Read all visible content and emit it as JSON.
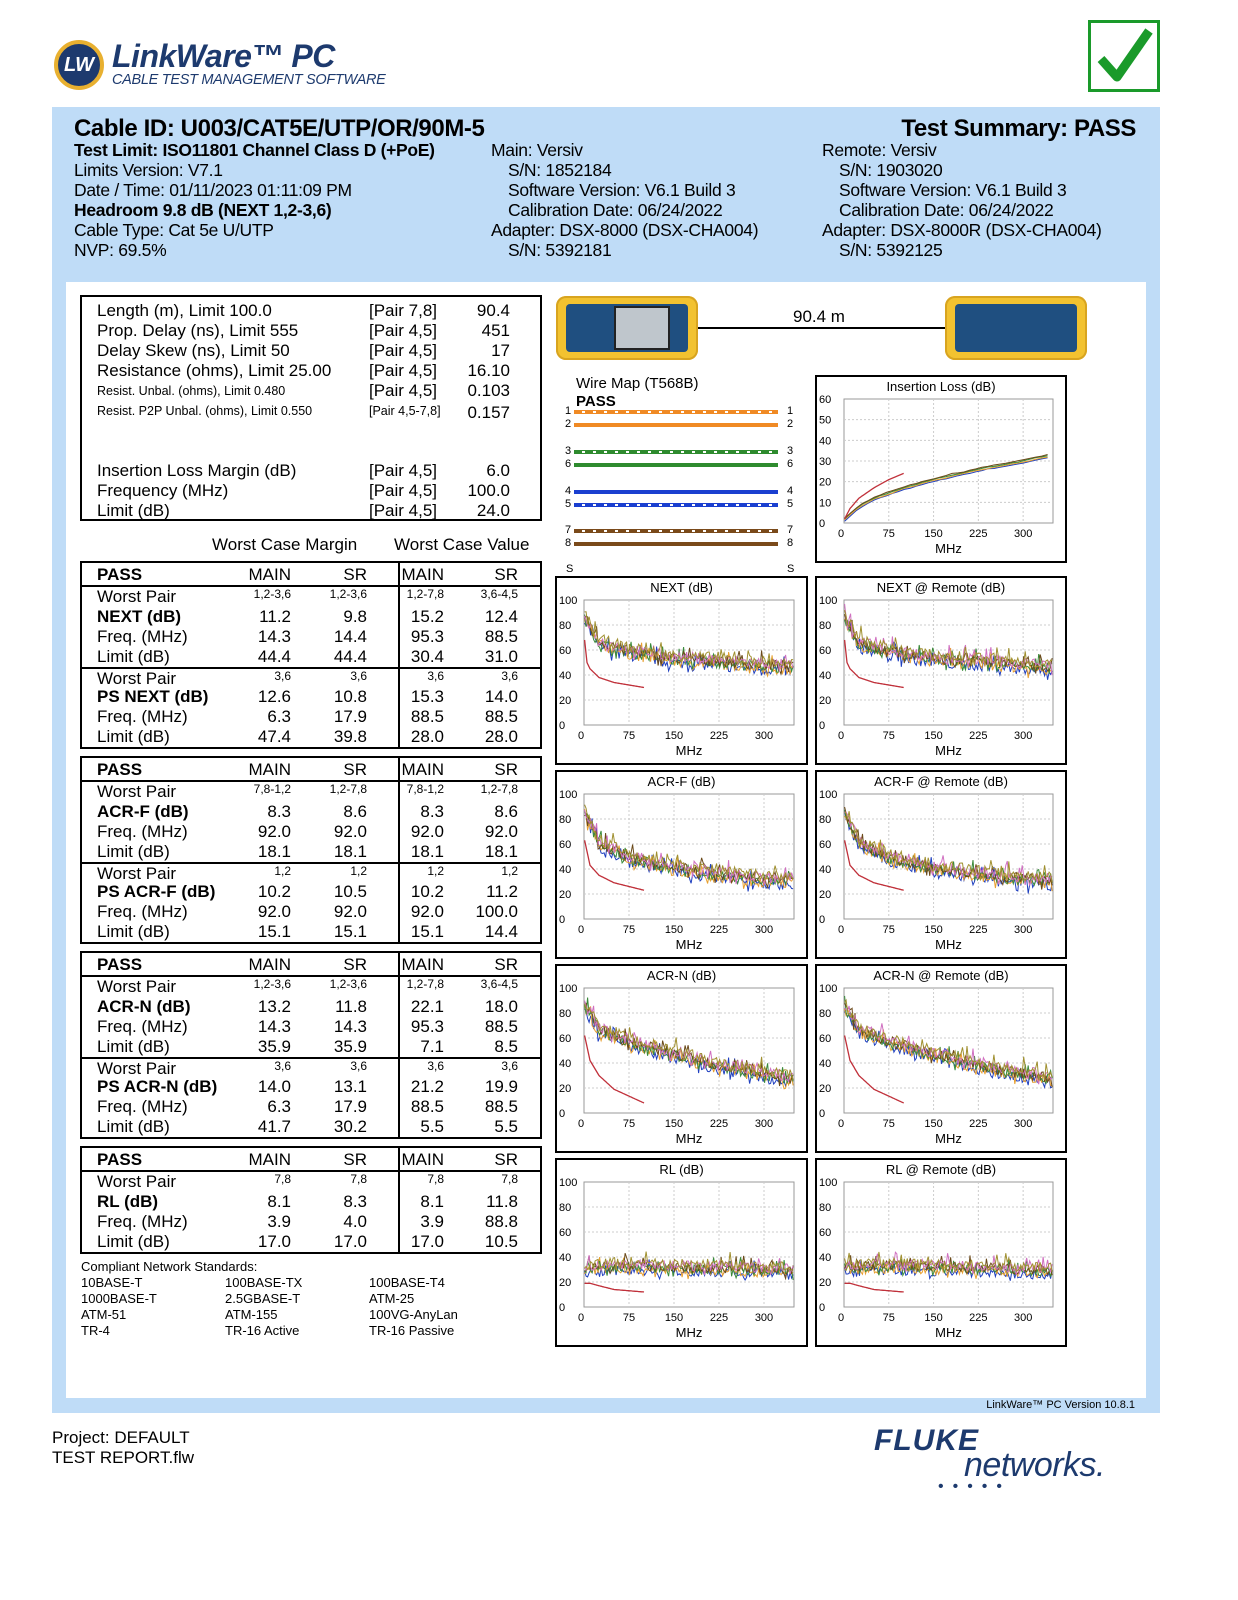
{
  "logo": {
    "mark": "LW",
    "name": "LinkWare™ PC",
    "tagline": "CABLE TEST MANAGEMENT SOFTWARE"
  },
  "status_icon": "checkmark-icon",
  "colors": {
    "band": "#bfdcf7",
    "pass": "#1a9a2a",
    "limit": "#c0303a",
    "device": "#f2c230"
  },
  "header": {
    "cable_id": "Cable ID: U003/CAT5E/UTP/OR/90M-5",
    "test_summary": "Test Summary: PASS",
    "left": [
      "Test Limit: ISO11801 Channel Class D (+PoE)",
      "Limits Version: V7.1",
      "Date / Time: 01/11/2023  01:11:09 PM",
      "Headroom 9.8 dB (NEXT 1,2-3,6)",
      "Cable Type: Cat 5e U/UTP",
      "NVP: 69.5%"
    ],
    "main": [
      "Main: Versiv",
      "S/N: 1852184",
      "Software Version: V6.1 Build 3",
      "Calibration Date: 06/24/2022",
      "Adapter: DSX-8000 (DSX-CHA004)",
      "S/N: 5392181"
    ],
    "remote": [
      "Remote: Versiv",
      "S/N: 1903020",
      "Software Version: V6.1 Build 3",
      "Calibration Date: 06/24/2022",
      "Adapter: DSX-8000R (DSX-CHA004)",
      "S/N: 5392125"
    ]
  },
  "summary": {
    "rows": [
      {
        "label": "Length (m), Limit 100.0",
        "pair": "[Pair 7,8]",
        "value": "90.4"
      },
      {
        "label": "Prop. Delay (ns), Limit 555",
        "pair": "[Pair 4,5]",
        "value": "451"
      },
      {
        "label": "Delay Skew (ns), Limit 50",
        "pair": "[Pair 4,5]",
        "value": "17"
      },
      {
        "label": "Resistance (ohms), Limit 25.00",
        "pair": "[Pair 4,5]",
        "value": "16.10"
      },
      {
        "label": "Resist. Unbal. (ohms), Limit 0.480",
        "pair": "[Pair 4,5]",
        "value": "0.103",
        "small": true
      },
      {
        "label": "Resist. P2P Unbal. (ohms), Limit 0.550",
        "pair": "[Pair 4,5-7,8]",
        "value": "0.157",
        "small": true,
        "smallpair": true
      }
    ],
    "il_rows": [
      {
        "label": "Insertion Loss Margin (dB)",
        "pair": "[Pair 4,5]",
        "value": "6.0"
      },
      {
        "label": "Frequency (MHz)",
        "pair": "[Pair 4,5]",
        "value": "100.0"
      },
      {
        "label": "Limit (dB)",
        "pair": "[Pair 4,5]",
        "value": "24.0"
      }
    ]
  },
  "worst_case": {
    "margin_heading": "Worst Case Margin",
    "value_heading": "Worst Case Value",
    "blocks": [
      {
        "status": "PASS",
        "cols": [
          "MAIN",
          "SR",
          "MAIN",
          "SR"
        ],
        "groups": [
          {
            "rows": [
              [
                "Worst Pair",
                "1,2-3,6",
                "1,2-3,6",
                "1,2-7,8",
                "3,6-4,5"
              ],
              [
                "NEXT (dB)",
                "11.2",
                "9.8",
                "15.2",
                "12.4"
              ],
              [
                "Freq. (MHz)",
                "14.3",
                "14.4",
                "95.3",
                "88.5"
              ],
              [
                "Limit (dB)",
                "44.4",
                "44.4",
                "30.4",
                "31.0"
              ]
            ]
          },
          {
            "rows": [
              [
                "Worst Pair",
                "3,6",
                "3,6",
                "3,6",
                "3,6"
              ],
              [
                "PS NEXT (dB)",
                "12.6",
                "10.8",
                "15.3",
                "14.0"
              ],
              [
                "Freq. (MHz)",
                "6.3",
                "17.9",
                "88.5",
                "88.5"
              ],
              [
                "Limit (dB)",
                "47.4",
                "39.8",
                "28.0",
                "28.0"
              ]
            ]
          }
        ]
      },
      {
        "status": "PASS",
        "cols": [
          "MAIN",
          "SR",
          "MAIN",
          "SR"
        ],
        "groups": [
          {
            "rows": [
              [
                "Worst Pair",
                "7,8-1,2",
                "1,2-7,8",
                "7,8-1,2",
                "1,2-7,8"
              ],
              [
                "ACR-F (dB)",
                "8.3",
                "8.6",
                "8.3",
                "8.6"
              ],
              [
                "Freq. (MHz)",
                "92.0",
                "92.0",
                "92.0",
                "92.0"
              ],
              [
                "Limit (dB)",
                "18.1",
                "18.1",
                "18.1",
                "18.1"
              ]
            ]
          },
          {
            "rows": [
              [
                "Worst Pair",
                "1,2",
                "1,2",
                "1,2",
                "1,2"
              ],
              [
                "PS ACR-F (dB)",
                "10.2",
                "10.5",
                "10.2",
                "11.2"
              ],
              [
                "Freq. (MHz)",
                "92.0",
                "92.0",
                "92.0",
                "100.0"
              ],
              [
                "Limit (dB)",
                "15.1",
                "15.1",
                "15.1",
                "14.4"
              ]
            ]
          }
        ]
      },
      {
        "status": "PASS",
        "cols": [
          "MAIN",
          "SR",
          "MAIN",
          "SR"
        ],
        "groups": [
          {
            "rows": [
              [
                "Worst Pair",
                "1,2-3,6",
                "1,2-3,6",
                "1,2-7,8",
                "3,6-4,5"
              ],
              [
                "ACR-N (dB)",
                "13.2",
                "11.8",
                "22.1",
                "18.0"
              ],
              [
                "Freq. (MHz)",
                "14.3",
                "14.3",
                "95.3",
                "88.5"
              ],
              [
                "Limit (dB)",
                "35.9",
                "35.9",
                "7.1",
                "8.5"
              ]
            ]
          },
          {
            "rows": [
              [
                "Worst Pair",
                "3,6",
                "3,6",
                "3,6",
                "3,6"
              ],
              [
                "PS ACR-N (dB)",
                "14.0",
                "13.1",
                "21.2",
                "19.9"
              ],
              [
                "Freq. (MHz)",
                "6.3",
                "17.9",
                "88.5",
                "88.5"
              ],
              [
                "Limit (dB)",
                "41.7",
                "30.2",
                "5.5",
                "5.5"
              ]
            ]
          }
        ]
      },
      {
        "status": "PASS",
        "cols": [
          "MAIN",
          "SR",
          "MAIN",
          "SR"
        ],
        "groups": [
          {
            "rows": [
              [
                "Worst Pair",
                "7,8",
                "7,8",
                "7,8",
                "7,8"
              ],
              [
                "RL (dB)",
                "8.1",
                "8.3",
                "8.1",
                "11.8"
              ],
              [
                "Freq. (MHz)",
                "3.9",
                "4.0",
                "3.9",
                "88.8"
              ],
              [
                "Limit (dB)",
                "17.0",
                "17.0",
                "17.0",
                "10.5"
              ]
            ]
          }
        ]
      }
    ]
  },
  "standards": {
    "title": "Compliant Network Standards:",
    "items": [
      "10BASE-T",
      "100BASE-TX",
      "100BASE-T4",
      "1000BASE-T",
      "2.5GBASE-T",
      "ATM-25",
      "ATM-51",
      "ATM-155",
      "100VG-AnyLan",
      "TR-4",
      "TR-16 Active",
      "TR-16 Passive"
    ]
  },
  "length_link": {
    "label": "90.4 m",
    "main_icon": "tester-main-icon",
    "remote_icon": "tester-remote-icon"
  },
  "wire_map": {
    "title": "Wire Map (T568B)",
    "result": "PASS",
    "shield": "S",
    "wires": [
      {
        "pin": "1",
        "color": "#f08a24",
        "striped": true
      },
      {
        "pin": "2",
        "color": "#f08a24",
        "striped": false
      },
      {
        "pin": "3",
        "color": "#2e8b2e",
        "striped": true
      },
      {
        "pin": "6",
        "color": "#2e8b2e",
        "striped": false
      },
      {
        "pin": "4",
        "color": "#1a3fd0",
        "striped": false
      },
      {
        "pin": "5",
        "color": "#1a3fd0",
        "striped": true
      },
      {
        "pin": "7",
        "color": "#7a4a1a",
        "striped": true
      },
      {
        "pin": "8",
        "color": "#7a4a1a",
        "striped": false
      }
    ]
  },
  "chart_data": [
    {
      "id": "il",
      "type": "line",
      "title": "Insertion Loss (dB)",
      "xlabel": "MHz",
      "xlim": [
        0,
        350
      ],
      "xticks": [
        0,
        75,
        150,
        225,
        300
      ],
      "ylim": [
        0,
        60
      ],
      "yticks": [
        0,
        10,
        20,
        30,
        40,
        50,
        60
      ],
      "grid": true,
      "limit": [
        [
          1,
          2
        ],
        [
          10,
          7
        ],
        [
          25,
          12
        ],
        [
          50,
          17
        ],
        [
          75,
          21
        ],
        [
          100,
          24
        ]
      ],
      "measured": [
        [
          1,
          2
        ],
        [
          25,
          8
        ],
        [
          50,
          12
        ],
        [
          100,
          17
        ],
        [
          150,
          21
        ],
        [
          225,
          26
        ],
        [
          300,
          30
        ],
        [
          350,
          33
        ]
      ],
      "noise": 0.3
    },
    {
      "id": "next",
      "type": "line",
      "title": "NEXT (dB)",
      "xlabel": "MHz",
      "xlim": [
        0,
        350
      ],
      "xticks": [
        0,
        75,
        150,
        225,
        300
      ],
      "ylim": [
        0,
        100
      ],
      "yticks": [
        0,
        20,
        40,
        60,
        80,
        100
      ],
      "grid": true,
      "limit": [
        [
          1,
          68
        ],
        [
          5,
          50
        ],
        [
          10,
          45
        ],
        [
          25,
          38
        ],
        [
          50,
          34
        ],
        [
          100,
          30
        ]
      ],
      "measured": [
        [
          1,
          85
        ],
        [
          25,
          65
        ],
        [
          75,
          58
        ],
        [
          150,
          52
        ],
        [
          225,
          50
        ],
        [
          300,
          47
        ],
        [
          350,
          45
        ]
      ],
      "noise": 9
    },
    {
      "id": "next-remote",
      "type": "line",
      "title": "NEXT @ Remote (dB)",
      "xlabel": "MHz",
      "xlim": [
        0,
        350
      ],
      "xticks": [
        0,
        75,
        150,
        225,
        300
      ],
      "ylim": [
        0,
        100
      ],
      "yticks": [
        0,
        20,
        40,
        60,
        80,
        100
      ],
      "grid": true,
      "limit": [
        [
          1,
          68
        ],
        [
          5,
          50
        ],
        [
          10,
          45
        ],
        [
          25,
          38
        ],
        [
          50,
          34
        ],
        [
          100,
          30
        ]
      ],
      "measured": [
        [
          1,
          85
        ],
        [
          25,
          65
        ],
        [
          75,
          58
        ],
        [
          150,
          52
        ],
        [
          225,
          50
        ],
        [
          300,
          47
        ],
        [
          350,
          45
        ]
      ],
      "noise": 9
    },
    {
      "id": "acrf",
      "type": "line",
      "title": "ACR-F (dB)",
      "xlabel": "MHz",
      "xlim": [
        0,
        350
      ],
      "xticks": [
        0,
        75,
        150,
        225,
        300
      ],
      "ylim": [
        0,
        100
      ],
      "yticks": [
        0,
        20,
        40,
        60,
        80,
        100
      ],
      "grid": true,
      "limit": [
        [
          1,
          63
        ],
        [
          10,
          43
        ],
        [
          25,
          35
        ],
        [
          50,
          29
        ],
        [
          100,
          23
        ]
      ],
      "measured": [
        [
          1,
          85
        ],
        [
          25,
          60
        ],
        [
          75,
          48
        ],
        [
          150,
          40
        ],
        [
          225,
          35
        ],
        [
          300,
          31
        ],
        [
          350,
          30
        ]
      ],
      "noise": 9
    },
    {
      "id": "acrf-remote",
      "type": "line",
      "title": "ACR-F @ Remote (dB)",
      "xlabel": "MHz",
      "xlim": [
        0,
        350
      ],
      "xticks": [
        0,
        75,
        150,
        225,
        300
      ],
      "ylim": [
        0,
        100
      ],
      "yticks": [
        0,
        20,
        40,
        60,
        80,
        100
      ],
      "grid": true,
      "limit": [
        [
          1,
          63
        ],
        [
          10,
          43
        ],
        [
          25,
          35
        ],
        [
          50,
          29
        ],
        [
          100,
          23
        ]
      ],
      "measured": [
        [
          1,
          85
        ],
        [
          25,
          60
        ],
        [
          75,
          48
        ],
        [
          150,
          40
        ],
        [
          225,
          35
        ],
        [
          300,
          31
        ],
        [
          350,
          30
        ]
      ],
      "noise": 9
    },
    {
      "id": "acrn",
      "type": "line",
      "title": "ACR-N (dB)",
      "xlabel": "MHz",
      "xlim": [
        0,
        350
      ],
      "xticks": [
        0,
        75,
        150,
        225,
        300
      ],
      "ylim": [
        0,
        100
      ],
      "yticks": [
        0,
        20,
        40,
        60,
        80,
        100
      ],
      "grid": true,
      "limit": [
        [
          1,
          62
        ],
        [
          10,
          42
        ],
        [
          25,
          30
        ],
        [
          50,
          19
        ],
        [
          100,
          8
        ]
      ],
      "measured": [
        [
          1,
          85
        ],
        [
          25,
          66
        ],
        [
          75,
          56
        ],
        [
          150,
          46
        ],
        [
          225,
          37
        ],
        [
          300,
          30
        ],
        [
          350,
          26
        ]
      ],
      "noise": 9
    },
    {
      "id": "acrn-remote",
      "type": "line",
      "title": "ACR-N @ Remote (dB)",
      "xlabel": "MHz",
      "xlim": [
        0,
        350
      ],
      "xticks": [
        0,
        75,
        150,
        225,
        300
      ],
      "ylim": [
        0,
        100
      ],
      "yticks": [
        0,
        20,
        40,
        60,
        80,
        100
      ],
      "grid": true,
      "limit": [
        [
          1,
          62
        ],
        [
          10,
          42
        ],
        [
          25,
          30
        ],
        [
          50,
          19
        ],
        [
          100,
          8
        ]
      ],
      "measured": [
        [
          1,
          85
        ],
        [
          25,
          66
        ],
        [
          75,
          56
        ],
        [
          150,
          46
        ],
        [
          225,
          37
        ],
        [
          300,
          30
        ],
        [
          350,
          26
        ]
      ],
      "noise": 9
    },
    {
      "id": "rl",
      "type": "line",
      "title": "RL (dB)",
      "xlabel": "MHz",
      "xlim": [
        0,
        350
      ],
      "xticks": [
        0,
        75,
        150,
        225,
        300
      ],
      "ylim": [
        0,
        100
      ],
      "yticks": [
        0,
        20,
        40,
        60,
        80,
        100
      ],
      "grid": true,
      "limit": [
        [
          1,
          19
        ],
        [
          10,
          19
        ],
        [
          25,
          17
        ],
        [
          50,
          14
        ],
        [
          100,
          12
        ]
      ],
      "measured": [
        [
          1,
          30
        ],
        [
          50,
          32
        ],
        [
          150,
          31
        ],
        [
          250,
          30
        ],
        [
          350,
          28
        ]
      ],
      "noise": 8
    },
    {
      "id": "rl-remote",
      "type": "line",
      "title": "RL @ Remote (dB)",
      "xlabel": "MHz",
      "xlim": [
        0,
        350
      ],
      "xticks": [
        0,
        75,
        150,
        225,
        300
      ],
      "ylim": [
        0,
        100
      ],
      "yticks": [
        0,
        20,
        40,
        60,
        80,
        100
      ],
      "grid": true,
      "limit": [
        [
          1,
          19
        ],
        [
          10,
          19
        ],
        [
          25,
          17
        ],
        [
          50,
          14
        ],
        [
          100,
          12
        ]
      ],
      "measured": [
        [
          1,
          30
        ],
        [
          50,
          32
        ],
        [
          150,
          31
        ],
        [
          250,
          30
        ],
        [
          350,
          28
        ]
      ],
      "noise": 8
    }
  ],
  "trace_colors": [
    "#1f3fbf",
    "#e8a030",
    "#3a8a3a",
    "#6b4a1a",
    "#d070c0",
    "#a09030",
    "#7a50a0"
  ],
  "footer": {
    "version": "LinkWare™ PC Version 10.8.1",
    "project": "Project: DEFAULT",
    "file": "TEST REPORT.flw",
    "brand1": "FLUKE",
    "brand2": "networks."
  }
}
